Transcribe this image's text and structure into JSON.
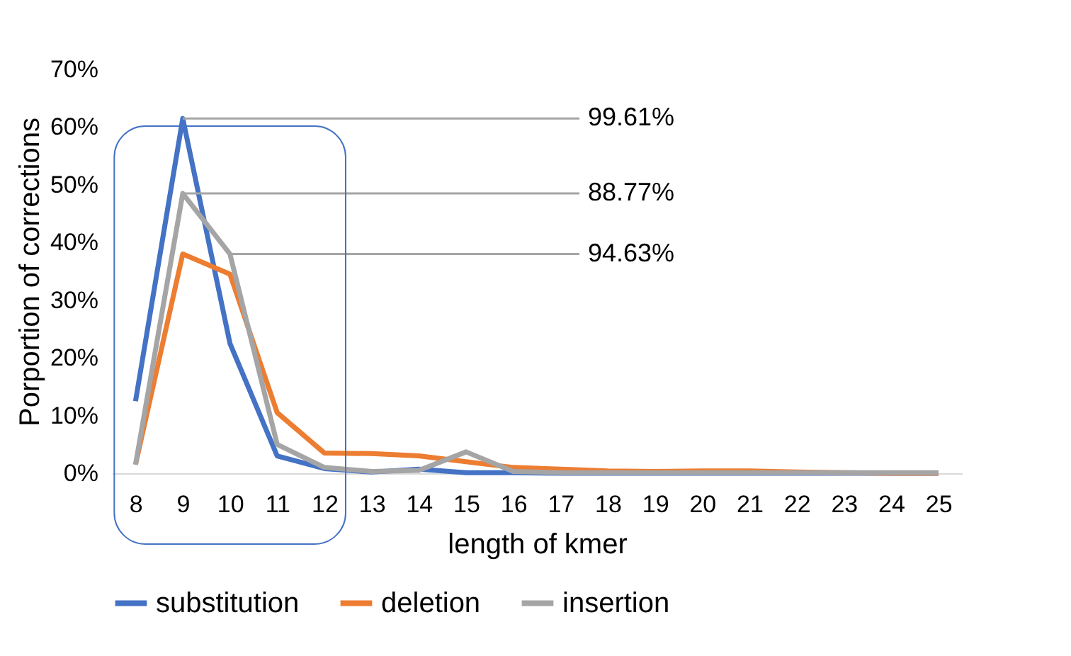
{
  "chart_data": {
    "type": "line",
    "xlabel": "length of kmer",
    "ylabel": "Porportion of corrections",
    "categories": [
      "8",
      "9",
      "10",
      "11",
      "12",
      "13",
      "14",
      "15",
      "16",
      "17",
      "18",
      "19",
      "20",
      "21",
      "22",
      "23",
      "24",
      "25"
    ],
    "series": [
      {
        "name": "substitution",
        "color": "#4472c4",
        "values": [
          12.5,
          61.5,
          22.5,
          3,
          0.8,
          0.2,
          0.7,
          0.1,
          0.1,
          0,
          0,
          0,
          0,
          0,
          0,
          0,
          0,
          0
        ]
      },
      {
        "name": "deletion",
        "color": "#ed7d31",
        "values": [
          1.5,
          38,
          34.5,
          10.5,
          3.5,
          3.4,
          3,
          2,
          1,
          0.7,
          0.4,
          0.3,
          0.4,
          0.4,
          0.2,
          0.1,
          0,
          0
        ]
      },
      {
        "name": "insertion",
        "color": "#a5a5a5",
        "values": [
          1.5,
          48.5,
          38,
          5,
          1,
          0.3,
          0.5,
          3.7,
          0.3,
          0.1,
          0.1,
          0.1,
          0.1,
          0.1,
          0.1,
          0.1,
          0.1,
          0.1
        ]
      }
    ],
    "ylim": [
      0,
      70
    ],
    "yticks": [
      {
        "value": 0,
        "label": "0%"
      },
      {
        "value": 10,
        "label": "10%"
      },
      {
        "value": 20,
        "label": "20%"
      },
      {
        "value": 30,
        "label": "30%"
      },
      {
        "value": 40,
        "label": "40%"
      },
      {
        "value": 50,
        "label": "50%"
      },
      {
        "value": 60,
        "label": "60%"
      },
      {
        "value": 70,
        "label": "70%"
      }
    ],
    "annotations": [
      {
        "text": "99.61%",
        "x": "9",
        "y": 61.5
      },
      {
        "text": "88.77%",
        "x": "9",
        "y": 48.5
      },
      {
        "text": "94.63%",
        "x": "10",
        "y": 38
      }
    ],
    "grid": false,
    "legend": "bottom",
    "marker": "none",
    "line_style": "solid"
  }
}
